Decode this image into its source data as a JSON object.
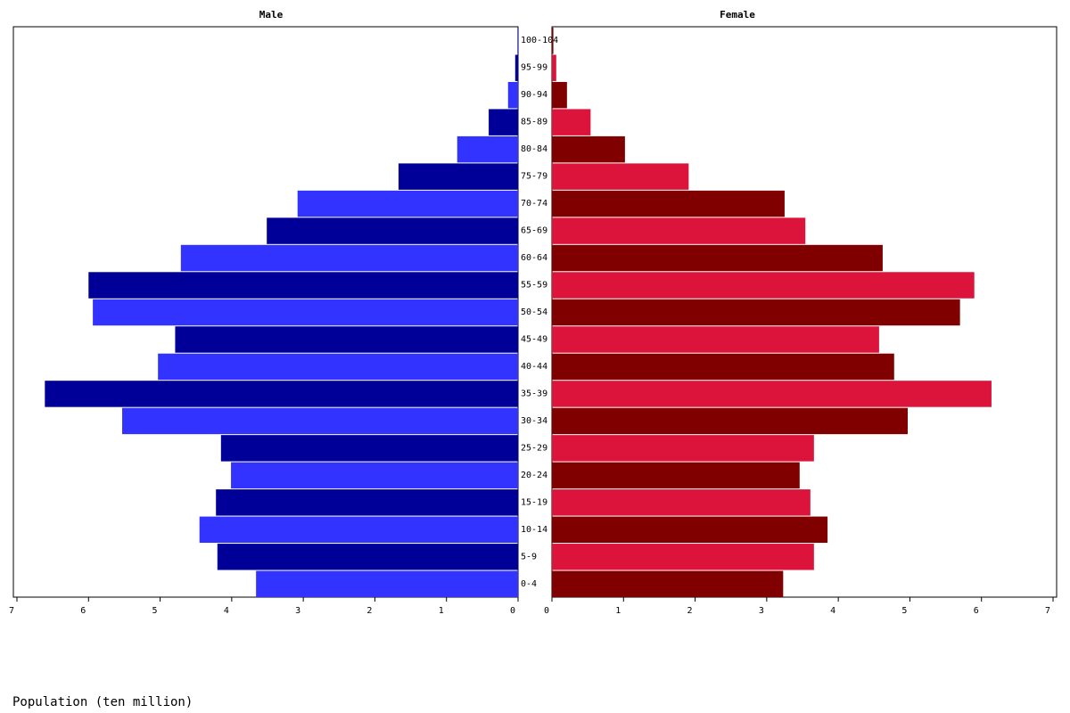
{
  "chart_data": {
    "type": "pyramid",
    "xlabel": "Population (ten million)",
    "categories": [
      "0-4",
      "5-9",
      "10-14",
      "15-19",
      "20-24",
      "25-29",
      "30-34",
      "35-39",
      "40-44",
      "45-49",
      "50-54",
      "55-59",
      "60-64",
      "65-69",
      "70-74",
      "75-79",
      "80-84",
      "85-89",
      "90-94",
      "95-99",
      "100-104"
    ],
    "series": [
      {
        "name": "Male",
        "colors": [
          "#3333ff",
          "#000099"
        ],
        "values": [
          3.66,
          4.2,
          4.45,
          4.22,
          4.01,
          4.15,
          5.53,
          6.61,
          5.03,
          4.79,
          5.94,
          6.0,
          4.71,
          3.51,
          3.08,
          1.67,
          0.85,
          0.41,
          0.14,
          0.04,
          0.01
        ]
      },
      {
        "name": "Female",
        "colors": [
          "#800000",
          "#dc143c"
        ],
        "values": [
          3.23,
          3.66,
          3.85,
          3.61,
          3.46,
          3.66,
          4.97,
          6.14,
          4.78,
          4.57,
          5.7,
          5.9,
          4.62,
          3.54,
          3.25,
          1.91,
          1.02,
          0.54,
          0.21,
          0.06,
          0.02
        ]
      }
    ],
    "xlim": [
      0,
      7
    ],
    "xticks": [
      0,
      1,
      2,
      3,
      4,
      5,
      6,
      7
    ]
  }
}
